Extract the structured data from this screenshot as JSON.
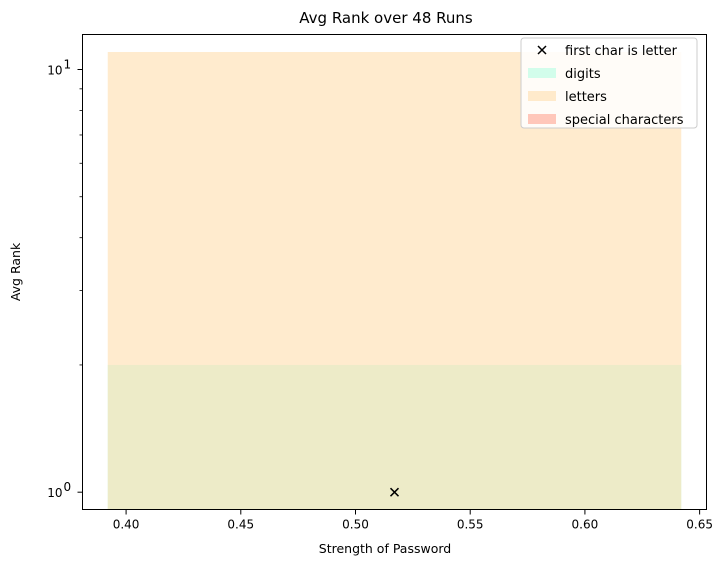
{
  "chart_data": {
    "type": "area",
    "title": "Avg Rank over 48 Runs",
    "xlabel": "Strength of Password",
    "ylabel": "Avg Rank",
    "xlim": [
      0.381,
      0.653
    ],
    "ylim": [
      0.91,
      12.1
    ],
    "yscale": "log",
    "grid": false,
    "legend_position": "top-right",
    "x_ticks": [
      0.4,
      0.45,
      0.5,
      0.55,
      0.6,
      0.65
    ],
    "x_tick_labels": [
      "0.40",
      "0.45",
      "0.50",
      "0.55",
      "0.60",
      "0.65"
    ],
    "y_ticks_major": [
      1,
      10
    ],
    "y_tick_base": "10",
    "y_tick_exponents": [
      "0",
      "1"
    ],
    "y_ticks_minor": [
      2,
      3,
      4,
      5,
      6,
      7,
      8,
      9
    ],
    "regions": [
      {
        "name": "digits",
        "color": "#7fffd4",
        "alpha": 0.35,
        "x": [
          0.392,
          0.642
        ],
        "y": [
          0.91,
          2.0
        ]
      },
      {
        "name": "letters",
        "color": "#ffdead",
        "alpha": 0.6,
        "x": [
          0.392,
          0.642
        ],
        "y": [
          0.91,
          11.0
        ]
      },
      {
        "name": "special characters",
        "color": "#ff6347",
        "alpha": 0.35,
        "x": [
          0.392,
          0.642
        ],
        "y": [
          0.91,
          0.91
        ]
      }
    ],
    "series": [
      {
        "name": "first char is letter",
        "marker": "x",
        "color": "#000000",
        "points": [
          [
            0.517,
            1.0
          ]
        ]
      }
    ],
    "legend": [
      {
        "kind": "marker",
        "label": "first char is letter"
      },
      {
        "kind": "patch",
        "label": "digits",
        "color": "#7fffd4",
        "alpha": 0.35
      },
      {
        "kind": "patch",
        "label": "letters",
        "color": "#ffdead",
        "alpha": 0.6
      },
      {
        "kind": "patch",
        "label": "special characters",
        "color": "#ff6347",
        "alpha": 0.35
      }
    ]
  }
}
